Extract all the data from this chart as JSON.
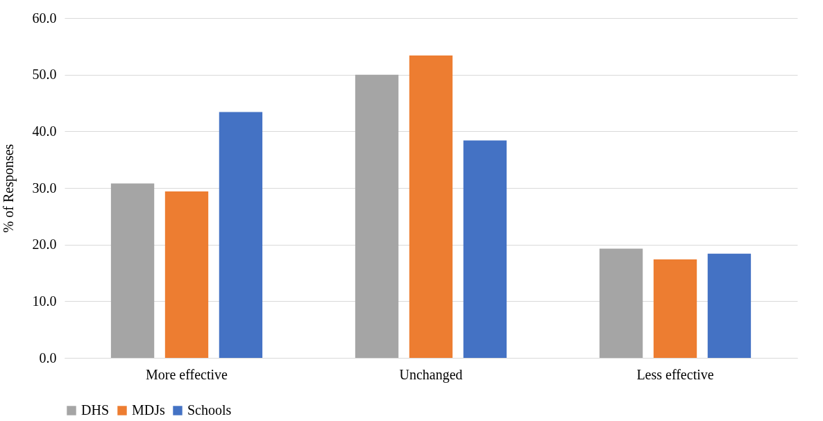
{
  "chart_data": {
    "type": "bar",
    "ylabel": "% of Responses",
    "categories": [
      "More effective",
      "Unchanged",
      "Less effective"
    ],
    "series": [
      {
        "name": "DHS",
        "color": "#a5a5a5",
        "values": [
          30.8,
          50.0,
          19.3
        ]
      },
      {
        "name": "MDJs",
        "color": "#ed7d31",
        "values": [
          29.4,
          53.4,
          17.4
        ]
      },
      {
        "name": "Schools",
        "color": "#4472c4",
        "values": [
          43.4,
          38.4,
          18.4
        ]
      }
    ],
    "ylim": [
      0,
      60
    ],
    "yticks": [
      {
        "value": 0,
        "label": "0.0"
      },
      {
        "value": 10,
        "label": "10.0"
      },
      {
        "value": 20,
        "label": "20.0"
      },
      {
        "value": 30,
        "label": "30.0"
      },
      {
        "value": 40,
        "label": "40.0"
      },
      {
        "value": 50,
        "label": "50.0"
      },
      {
        "value": 60,
        "label": "60.0"
      }
    ],
    "grid": "y",
    "legend": "bottom"
  }
}
